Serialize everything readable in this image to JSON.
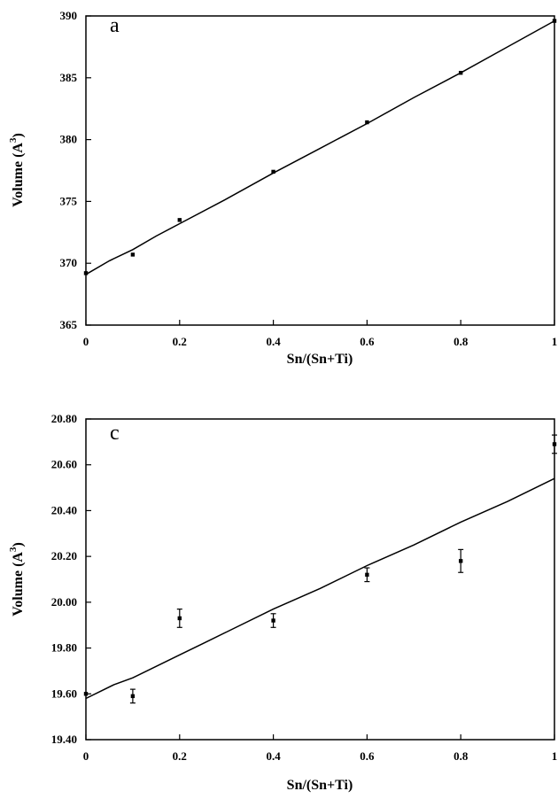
{
  "chart_data": [
    {
      "type": "scatter",
      "panel_label": "a",
      "xlabel": "Sn/(Sn+Ti)",
      "ylabel": "Volume (A",
      "ylabel_sup": "3",
      "ylabel_end": ")",
      "xlim": [
        0,
        1
      ],
      "ylim": [
        365,
        390
      ],
      "xticks": [
        0,
        0.2,
        0.4,
        0.6,
        0.8,
        1
      ],
      "xtick_labels": [
        "0",
        "0.2",
        "0.4",
        "0.6",
        "0.8",
        "1"
      ],
      "yticks": [
        365,
        370,
        375,
        380,
        385,
        390
      ],
      "ytick_labels": [
        "365",
        "370",
        "375",
        "380",
        "385",
        "390"
      ],
      "grid": false,
      "points": [
        {
          "x": 0,
          "y": 369.2
        },
        {
          "x": 0.1,
          "y": 370.7
        },
        {
          "x": 0.2,
          "y": 373.5
        },
        {
          "x": 0.4,
          "y": 377.4
        },
        {
          "x": 0.6,
          "y": 381.4
        },
        {
          "x": 0.8,
          "y": 385.4
        },
        {
          "x": 1,
          "y": 389.6
        }
      ],
      "fit_line": [
        {
          "x": 0,
          "y": 369.1
        },
        {
          "x": 0.05,
          "y": 370.2
        },
        {
          "x": 0.1,
          "y": 371.1
        },
        {
          "x": 0.15,
          "y": 372.2
        },
        {
          "x": 0.2,
          "y": 373.2
        },
        {
          "x": 0.3,
          "y": 375.2
        },
        {
          "x": 0.4,
          "y": 377.3
        },
        {
          "x": 0.5,
          "y": 379.3
        },
        {
          "x": 0.6,
          "y": 381.3
        },
        {
          "x": 0.7,
          "y": 383.4
        },
        {
          "x": 0.8,
          "y": 385.4
        },
        {
          "x": 0.9,
          "y": 387.5
        },
        {
          "x": 1,
          "y": 389.6
        }
      ]
    },
    {
      "type": "scatter",
      "panel_label": "c",
      "xlabel": "Sn/(Sn+Ti)",
      "ylabel": "Volume (A",
      "ylabel_sup": "3",
      "ylabel_end": ")",
      "xlim": [
        0,
        1
      ],
      "ylim": [
        19.4,
        20.8
      ],
      "xticks": [
        0,
        0.2,
        0.4,
        0.6,
        0.8,
        1
      ],
      "xtick_labels": [
        "0",
        "0.2",
        "0.4",
        "0.6",
        "0.8",
        "1"
      ],
      "yticks": [
        19.4,
        19.6,
        19.8,
        20.0,
        20.2,
        20.4,
        20.6,
        20.8
      ],
      "ytick_labels": [
        "19.40",
        "19.60",
        "19.80",
        "20.00",
        "20.20",
        "20.40",
        "20.60",
        "20.80"
      ],
      "grid": false,
      "points": [
        {
          "x": 0,
          "y": 19.6,
          "err": 0.0
        },
        {
          "x": 0.1,
          "y": 19.59,
          "err": 0.03
        },
        {
          "x": 0.2,
          "y": 19.93,
          "err": 0.04
        },
        {
          "x": 0.4,
          "y": 19.92,
          "err": 0.03
        },
        {
          "x": 0.6,
          "y": 20.12,
          "err": 0.03
        },
        {
          "x": 0.8,
          "y": 20.18,
          "err": 0.05
        },
        {
          "x": 1,
          "y": 20.69,
          "err": 0.04
        }
      ],
      "fit_line": [
        {
          "x": 0,
          "y": 19.58
        },
        {
          "x": 0.03,
          "y": 19.61
        },
        {
          "x": 0.06,
          "y": 19.64
        },
        {
          "x": 0.1,
          "y": 19.67
        },
        {
          "x": 0.2,
          "y": 19.77
        },
        {
          "x": 0.25,
          "y": 19.82
        },
        {
          "x": 0.3,
          "y": 19.87
        },
        {
          "x": 0.4,
          "y": 19.97
        },
        {
          "x": 0.5,
          "y": 20.06
        },
        {
          "x": 0.6,
          "y": 20.16
        },
        {
          "x": 0.7,
          "y": 20.25
        },
        {
          "x": 0.8,
          "y": 20.35
        },
        {
          "x": 0.9,
          "y": 20.44
        },
        {
          "x": 1,
          "y": 20.54
        }
      ]
    }
  ]
}
